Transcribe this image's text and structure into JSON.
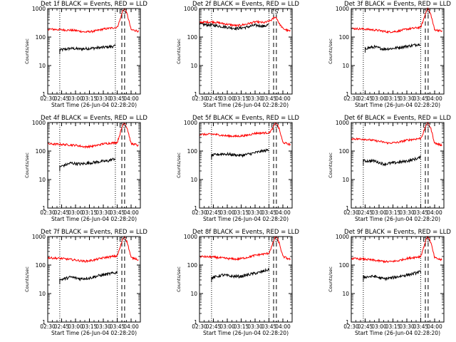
{
  "figure": {
    "ylabel": "Counts/sec",
    "xlabel": "Start Time (26-Jun-04 02:28:20)",
    "colors": {
      "events": "#000000",
      "lld": "#ff0000",
      "axis": "#000000"
    },
    "marker_labels": [
      "E",
      "S"
    ]
  },
  "chart_data": [
    {
      "type": "line",
      "title": "Det 1f BLACK = Events, RED = LLD",
      "xlim": [
        "02:30",
        "04:10"
      ],
      "ylim": [
        1,
        1000
      ],
      "yscale": "log",
      "xticks": [
        "02:30",
        "02:45",
        "03:00",
        "03:15",
        "03:30",
        "03:45",
        "04:00"
      ],
      "yticks": [
        "1",
        "10",
        "100",
        "1000"
      ],
      "vlines_dotted": [
        "02:43",
        "03:43"
      ],
      "vlines_dashed": [
        "03:50",
        "03:53"
      ],
      "markers": [
        {
          "label": "E",
          "x": "03:49"
        },
        {
          "label": "S",
          "x": "03:53"
        }
      ],
      "series": [
        {
          "name": "Events",
          "color": "#000000",
          "start": "02:43",
          "end": "03:43",
          "x": [
            "02:43",
            "02:55",
            "03:05",
            "03:15",
            "03:25",
            "03:35",
            "03:43"
          ],
          "y": [
            35,
            40,
            38,
            40,
            42,
            45,
            48
          ]
        },
        {
          "name": "LLD",
          "color": "#ff0000",
          "start": "02:30",
          "end": "04:08",
          "x": [
            "02:30",
            "02:45",
            "03:00",
            "03:10",
            "03:20",
            "03:30",
            "03:45",
            "03:48",
            "03:51",
            "03:53",
            "03:56",
            "04:00",
            "04:05",
            "04:08"
          ],
          "y": [
            190,
            180,
            170,
            150,
            160,
            190,
            220,
            400,
            850,
            1000,
            600,
            180,
            170,
            160
          ]
        }
      ]
    },
    {
      "type": "line",
      "title": "Det 2f BLACK = Events, RED = LLD",
      "xlim": [
        "02:30",
        "04:10"
      ],
      "ylim": [
        1,
        1000
      ],
      "yscale": "log",
      "xticks": [
        "02:30",
        "02:45",
        "03:00",
        "03:15",
        "03:30",
        "03:45",
        "04:00"
      ],
      "yticks": [
        "1",
        "10",
        "100",
        "1000"
      ],
      "vlines_dotted": [
        "02:43",
        "03:45"
      ],
      "vlines_dashed": [
        "03:50",
        "03:53"
      ],
      "markers": [
        {
          "label": "E",
          "x": "03:49"
        },
        {
          "label": "S",
          "x": "03:53"
        }
      ],
      "series": [
        {
          "name": "Events",
          "color": "#000000",
          "start": "02:30",
          "end": "03:45",
          "x": [
            "02:30",
            "02:45",
            "03:00",
            "03:10",
            "03:20",
            "03:30",
            "03:40",
            "03:45"
          ],
          "y": [
            280,
            260,
            220,
            200,
            220,
            260,
            240,
            280
          ]
        },
        {
          "name": "LLD",
          "color": "#ff0000",
          "start": "02:30",
          "end": "04:08",
          "x": [
            "02:30",
            "02:45",
            "03:00",
            "03:10",
            "03:20",
            "03:30",
            "03:40",
            "03:45",
            "03:48",
            "03:51",
            "03:53",
            "03:56",
            "04:00",
            "04:05",
            "04:08"
          ],
          "y": [
            330,
            340,
            280,
            250,
            280,
            340,
            320,
            360,
            400,
            500,
            480,
            300,
            200,
            170,
            160
          ]
        }
      ]
    },
    {
      "type": "line",
      "title": "Det 3f BLACK = Events, RED = LLD",
      "xlim": [
        "02:30",
        "04:10"
      ],
      "ylim": [
        1,
        1000
      ],
      "yscale": "log",
      "xticks": [
        "02:30",
        "02:45",
        "03:00",
        "03:15",
        "03:30",
        "03:45",
        "04:00"
      ],
      "yticks": [
        "1",
        "10",
        "100",
        "1000"
      ],
      "vlines_dotted": [
        "02:43",
        "03:45"
      ],
      "vlines_dashed": [
        "03:50",
        "03:53"
      ],
      "markers": [
        {
          "label": "E",
          "x": "03:49"
        },
        {
          "label": "S",
          "x": "03:53"
        }
      ],
      "series": [
        {
          "name": "Events",
          "color": "#000000",
          "start": "02:45",
          "end": "03:45",
          "x": [
            "02:45",
            "02:55",
            "03:05",
            "03:15",
            "03:25",
            "03:35",
            "03:45"
          ],
          "y": [
            40,
            45,
            38,
            40,
            45,
            50,
            58
          ]
        },
        {
          "name": "LLD",
          "color": "#ff0000",
          "start": "02:30",
          "end": "04:08",
          "x": [
            "02:30",
            "02:45",
            "03:00",
            "03:10",
            "03:20",
            "03:30",
            "03:45",
            "03:48",
            "03:51",
            "03:53",
            "03:56",
            "04:00",
            "04:05",
            "04:08"
          ],
          "y": [
            200,
            190,
            170,
            150,
            160,
            190,
            220,
            400,
            850,
            1000,
            600,
            180,
            170,
            160
          ]
        }
      ]
    },
    {
      "type": "line",
      "title": "Det 4f BLACK = Events, RED = LLD",
      "xlim": [
        "02:30",
        "04:10"
      ],
      "ylim": [
        1,
        1000
      ],
      "yscale": "log",
      "xticks": [
        "02:30",
        "02:45",
        "03:00",
        "03:15",
        "03:30",
        "03:45",
        "04:00"
      ],
      "yticks": [
        "1",
        "10",
        "100",
        "1000"
      ],
      "vlines_dotted": [
        "02:43",
        "03:43"
      ],
      "vlines_dashed": [
        "03:50",
        "03:53"
      ],
      "markers": [
        {
          "label": "E",
          "x": "03:49"
        },
        {
          "label": "S",
          "x": "03:53"
        }
      ],
      "series": [
        {
          "name": "Events",
          "color": "#000000",
          "start": "02:43",
          "end": "03:43",
          "x": [
            "02:43",
            "02:55",
            "03:05",
            "03:15",
            "03:25",
            "03:35",
            "03:43"
          ],
          "y": [
            28,
            38,
            35,
            38,
            42,
            45,
            55
          ]
        },
        {
          "name": "LLD",
          "color": "#ff0000",
          "start": "02:30",
          "end": "04:08",
          "x": [
            "02:30",
            "02:45",
            "03:00",
            "03:10",
            "03:20",
            "03:30",
            "03:45",
            "03:48",
            "03:51",
            "03:53",
            "03:56",
            "04:00",
            "04:05",
            "04:08"
          ],
          "y": [
            180,
            170,
            160,
            140,
            150,
            180,
            200,
            400,
            850,
            1000,
            600,
            180,
            170,
            150
          ]
        }
      ]
    },
    {
      "type": "line",
      "title": "Det 5f BLACK = Events, RED = LLD",
      "xlim": [
        "02:30",
        "04:10"
      ],
      "ylim": [
        1,
        1000
      ],
      "yscale": "log",
      "xticks": [
        "02:30",
        "02:45",
        "03:00",
        "03:15",
        "03:30",
        "03:45",
        "04:00"
      ],
      "yticks": [
        "1",
        "10",
        "100",
        "1000"
      ],
      "vlines_dotted": [
        "02:43",
        "03:45"
      ],
      "vlines_dashed": [
        "03:50",
        "03:53"
      ],
      "markers": [
        {
          "label": "E",
          "x": "03:49"
        },
        {
          "label": "S",
          "x": "03:53"
        }
      ],
      "series": [
        {
          "name": "Events",
          "color": "#000000",
          "start": "02:43",
          "end": "03:45",
          "x": [
            "02:43",
            "02:55",
            "03:05",
            "03:15",
            "03:25",
            "03:35",
            "03:45"
          ],
          "y": [
            70,
            80,
            75,
            70,
            80,
            95,
            110
          ]
        },
        {
          "name": "LLD",
          "color": "#ff0000",
          "start": "02:30",
          "end": "04:08",
          "x": [
            "02:30",
            "02:45",
            "03:00",
            "03:10",
            "03:20",
            "03:30",
            "03:45",
            "03:48",
            "03:51",
            "03:53",
            "03:56",
            "04:00",
            "04:05",
            "04:08"
          ],
          "y": [
            380,
            390,
            340,
            330,
            350,
            420,
            440,
            550,
            850,
            1000,
            600,
            200,
            180,
            170
          ]
        }
      ]
    },
    {
      "type": "line",
      "title": "Det 6f BLACK = Events, RED = LLD",
      "xlim": [
        "02:30",
        "04:10"
      ],
      "ylim": [
        1,
        1000
      ],
      "yscale": "log",
      "xticks": [
        "02:30",
        "02:45",
        "03:00",
        "03:15",
        "03:30",
        "03:45",
        "04:00"
      ],
      "yticks": [
        "1",
        "10",
        "100",
        "1000"
      ],
      "vlines_dotted": [
        "02:43",
        "03:45"
      ],
      "vlines_dashed": [
        "03:50",
        "03:53"
      ],
      "markers": [
        {
          "label": "E",
          "x": "03:49"
        },
        {
          "label": "S",
          "x": "03:53"
        }
      ],
      "series": [
        {
          "name": "Events",
          "color": "#000000",
          "start": "02:43",
          "end": "03:45",
          "x": [
            "02:43",
            "02:55",
            "03:05",
            "03:15",
            "03:25",
            "03:35",
            "03:45"
          ],
          "y": [
            45,
            45,
            35,
            38,
            42,
            48,
            60
          ]
        },
        {
          "name": "LLD",
          "color": "#ff0000",
          "start": "02:30",
          "end": "04:08",
          "x": [
            "02:30",
            "02:45",
            "03:00",
            "03:10",
            "03:20",
            "03:30",
            "03:45",
            "03:48",
            "03:51",
            "03:53",
            "03:56",
            "04:00",
            "04:05",
            "04:08"
          ],
          "y": [
            270,
            260,
            220,
            190,
            200,
            240,
            280,
            450,
            850,
            1000,
            600,
            190,
            170,
            160
          ]
        }
      ]
    },
    {
      "type": "line",
      "title": "Det 7f BLACK = Events, RED = LLD",
      "xlim": [
        "02:30",
        "04:10"
      ],
      "ylim": [
        1,
        1000
      ],
      "yscale": "log",
      "xticks": [
        "02:30",
        "02:45",
        "03:00",
        "03:15",
        "03:30",
        "03:45",
        "04:00"
      ],
      "yticks": [
        "1",
        "10",
        "100",
        "1000"
      ],
      "vlines_dotted": [
        "02:43",
        "03:45"
      ],
      "vlines_dashed": [
        "03:50",
        "03:53"
      ],
      "markers": [
        {
          "label": "E",
          "x": "03:49"
        },
        {
          "label": "S",
          "x": "03:53"
        }
      ],
      "series": [
        {
          "name": "Events",
          "color": "#000000",
          "start": "02:43",
          "end": "03:45",
          "x": [
            "02:43",
            "02:55",
            "03:05",
            "03:15",
            "03:25",
            "03:35",
            "03:45"
          ],
          "y": [
            30,
            38,
            33,
            35,
            42,
            48,
            55
          ]
        },
        {
          "name": "LLD",
          "color": "#ff0000",
          "start": "02:30",
          "end": "04:08",
          "x": [
            "02:30",
            "02:45",
            "03:00",
            "03:10",
            "03:20",
            "03:30",
            "03:45",
            "03:48",
            "03:51",
            "03:53",
            "03:56",
            "04:00",
            "04:05",
            "04:08"
          ],
          "y": [
            180,
            170,
            150,
            135,
            150,
            180,
            210,
            400,
            850,
            1000,
            600,
            180,
            170,
            150
          ]
        }
      ]
    },
    {
      "type": "line",
      "title": "Det 8f BLACK = Events, RED = LLD",
      "xlim": [
        "02:30",
        "04:10"
      ],
      "ylim": [
        1,
        1000
      ],
      "yscale": "log",
      "xticks": [
        "02:30",
        "02:45",
        "03:00",
        "03:15",
        "03:30",
        "03:45",
        "04:00"
      ],
      "yticks": [
        "1",
        "10",
        "100",
        "1000"
      ],
      "vlines_dotted": [
        "02:43",
        "03:45"
      ],
      "vlines_dashed": [
        "03:50",
        "03:53"
      ],
      "markers": [
        {
          "label": "E",
          "x": "03:49"
        },
        {
          "label": "S",
          "x": "03:53"
        }
      ],
      "series": [
        {
          "name": "Events",
          "color": "#000000",
          "start": "02:43",
          "end": "03:45",
          "x": [
            "02:43",
            "02:55",
            "03:05",
            "03:15",
            "03:25",
            "03:35",
            "03:45"
          ],
          "y": [
            35,
            45,
            40,
            40,
            48,
            55,
            70
          ]
        },
        {
          "name": "LLD",
          "color": "#ff0000",
          "start": "02:30",
          "end": "04:08",
          "x": [
            "02:30",
            "02:45",
            "03:00",
            "03:10",
            "03:20",
            "03:30",
            "03:45",
            "03:48",
            "03:51",
            "03:53",
            "03:56",
            "04:00",
            "04:05",
            "04:08"
          ],
          "y": [
            200,
            190,
            170,
            160,
            180,
            220,
            260,
            450,
            850,
            1000,
            600,
            200,
            170,
            160
          ]
        }
      ]
    },
    {
      "type": "line",
      "title": "Det 9f BLACK = Events, RED = LLD",
      "xlim": [
        "02:30",
        "04:10"
      ],
      "ylim": [
        1,
        1000
      ],
      "yscale": "log",
      "xticks": [
        "02:30",
        "02:45",
        "03:00",
        "03:15",
        "03:30",
        "03:45",
        "04:00"
      ],
      "yticks": [
        "1",
        "10",
        "100",
        "1000"
      ],
      "vlines_dotted": [
        "02:43",
        "03:45"
      ],
      "vlines_dashed": [
        "03:50",
        "03:53"
      ],
      "markers": [
        {
          "label": "E",
          "x": "03:49"
        },
        {
          "label": "S",
          "x": "03:53"
        }
      ],
      "series": [
        {
          "name": "Events",
          "color": "#000000",
          "start": "02:43",
          "end": "03:45",
          "x": [
            "02:43",
            "02:55",
            "03:05",
            "03:15",
            "03:25",
            "03:35",
            "03:45"
          ],
          "y": [
            38,
            40,
            33,
            36,
            42,
            48,
            58
          ]
        },
        {
          "name": "LLD",
          "color": "#ff0000",
          "start": "02:30",
          "end": "04:08",
          "x": [
            "02:30",
            "02:45",
            "03:00",
            "03:10",
            "03:20",
            "03:30",
            "03:45",
            "03:48",
            "03:51",
            "03:53",
            "03:56",
            "04:00",
            "04:05",
            "04:08"
          ],
          "y": [
            170,
            160,
            140,
            130,
            140,
            170,
            200,
            400,
            850,
            1000,
            600,
            180,
            160,
            150
          ]
        }
      ]
    }
  ]
}
